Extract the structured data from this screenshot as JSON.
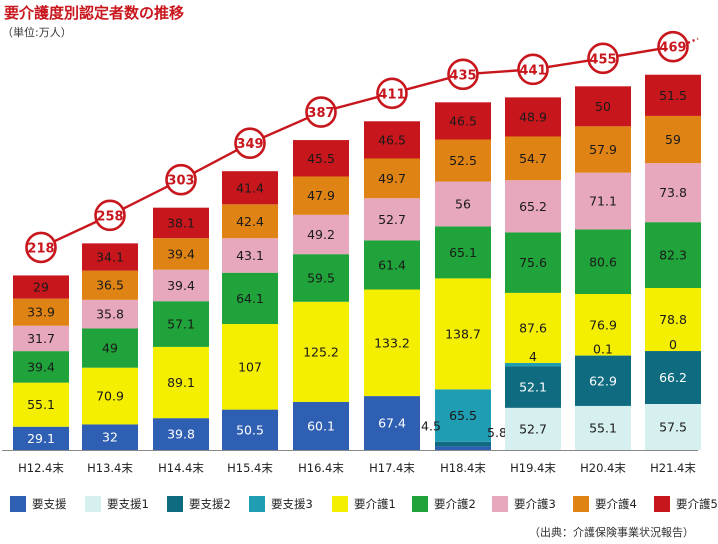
{
  "title": "要介護度別認定者数の推移",
  "unit": "（単位:万人）",
  "source": "（出典：介護保険事業状況報告）",
  "chart_data": {
    "type": "bar",
    "stacked": true,
    "categories": [
      "H12.4末",
      "H13.4末",
      "H14.4末",
      "H15.4末",
      "H16.4末",
      "H17.4末",
      "H18.4末",
      "H19.4末",
      "H20.4末",
      "H21.4末"
    ],
    "totals": [
      218,
      258,
      303,
      349,
      387,
      411,
      435,
      441,
      455,
      469
    ],
    "series": [
      {
        "name": "要支援",
        "color": "#2f5fb3",
        "values": [
          29.1,
          32,
          39.8,
          50.5,
          60.1,
          67.4,
          4.5,
          null,
          null,
          null
        ]
      },
      {
        "name": "要支援1",
        "color": "#d6f0ef",
        "values": [
          null,
          null,
          null,
          null,
          null,
          null,
          null,
          52.7,
          55.1,
          57.5
        ]
      },
      {
        "name": "要支援2",
        "color": "#0e6b80",
        "values": [
          null,
          null,
          null,
          null,
          null,
          null,
          5.8,
          52.1,
          62.9,
          66.2
        ]
      },
      {
        "name": "要支援3",
        "color": "#1e9db3",
        "values": [
          null,
          null,
          null,
          null,
          null,
          null,
          65.5,
          4,
          0.1,
          0
        ]
      },
      {
        "name": "要介護1",
        "color": "#f4ee00",
        "values": [
          55.1,
          70.9,
          89.1,
          107,
          125.2,
          133.2,
          138.7,
          87.6,
          76.9,
          78.8
        ]
      },
      {
        "name": "要介護2",
        "color": "#1fa33a",
        "values": [
          39.4,
          49,
          57.1,
          64.1,
          59.5,
          61.4,
          65.1,
          75.6,
          80.6,
          82.3
        ]
      },
      {
        "name": "要介護3",
        "color": "#e7a8be",
        "values": [
          31.7,
          35.8,
          39.4,
          43.1,
          49.2,
          52.7,
          56,
          65.2,
          71.1,
          73.8
        ]
      },
      {
        "name": "要介護4",
        "color": "#df8414",
        "values": [
          33.9,
          36.5,
          39.4,
          42.4,
          47.9,
          49.7,
          52.5,
          54.7,
          57.9,
          59
        ]
      },
      {
        "name": "要介護5",
        "color": "#c8161d",
        "values": [
          29,
          34.1,
          38.1,
          41.4,
          45.5,
          46.5,
          46.5,
          48.9,
          50,
          51.5
        ]
      }
    ],
    "ylim": [
      0,
      469
    ],
    "grid": false,
    "legend_position": "bottom",
    "line_color": "#c8161d"
  }
}
